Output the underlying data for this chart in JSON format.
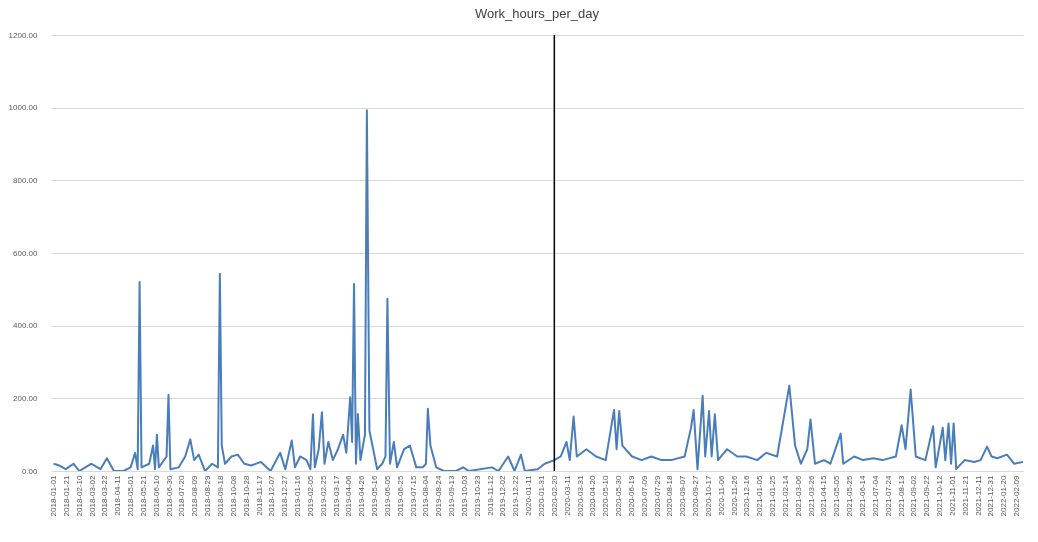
{
  "chart_data": {
    "type": "line",
    "title": "Work_hours_per_day",
    "x": [
      "2018-01-01",
      "2018-01-10",
      "2018-01-20",
      "2018-02-01",
      "2018-02-10",
      "2018-03-01",
      "2018-03-15",
      "2018-03-25",
      "2018-04-05",
      "2018-04-20",
      "2018-05-01",
      "2018-05-08",
      "2018-05-12",
      "2018-05-15",
      "2018-05-18",
      "2018-05-30",
      "2018-06-05",
      "2018-06-08",
      "2018-06-11",
      "2018-06-14",
      "2018-06-26",
      "2018-06-29",
      "2018-07-02",
      "2018-07-15",
      "2018-07-25",
      "2018-08-02",
      "2018-08-08",
      "2018-08-15",
      "2018-08-25",
      "2018-09-05",
      "2018-09-14",
      "2018-09-17",
      "2018-09-20",
      "2018-09-25",
      "2018-10-05",
      "2018-10-15",
      "2018-10-25",
      "2018-11-05",
      "2018-11-20",
      "2018-12-05",
      "2018-12-20",
      "2018-12-28",
      "2019-01-07",
      "2019-01-12",
      "2019-01-20",
      "2019-01-30",
      "2019-02-05",
      "2019-02-09",
      "2019-02-12",
      "2019-02-18",
      "2019-02-23",
      "2019-02-27",
      "2019-03-05",
      "2019-03-12",
      "2019-03-20",
      "2019-03-28",
      "2019-04-02",
      "2019-04-08",
      "2019-04-11",
      "2019-04-14",
      "2019-04-17",
      "2019-04-20",
      "2019-04-24",
      "2019-05-01",
      "2019-05-04",
      "2019-05-08",
      "2019-05-15",
      "2019-05-20",
      "2019-05-28",
      "2019-06-02",
      "2019-06-05",
      "2019-06-09",
      "2019-06-15",
      "2019-06-20",
      "2019-07-01",
      "2019-07-10",
      "2019-07-20",
      "2019-07-30",
      "2019-08-04",
      "2019-08-07",
      "2019-08-11",
      "2019-08-20",
      "2019-09-01",
      "2019-09-20",
      "2019-10-01",
      "2019-10-10",
      "2019-11-15",
      "2019-11-25",
      "2019-12-10",
      "2019-12-20",
      "2019-12-30",
      "2020-01-05",
      "2020-01-25",
      "2020-02-05",
      "2020-02-20",
      "2020-03-01",
      "2020-03-10",
      "2020-03-15",
      "2020-03-21",
      "2020-03-26",
      "2020-04-10",
      "2020-04-25",
      "2020-05-10",
      "2020-05-23",
      "2020-05-27",
      "2020-05-31",
      "2020-06-05",
      "2020-06-20",
      "2020-07-05",
      "2020-07-20",
      "2020-08-05",
      "2020-08-20",
      "2020-09-10",
      "2020-09-20",
      "2020-09-24",
      "2020-09-30",
      "2020-10-08",
      "2020-10-12",
      "2020-10-18",
      "2020-10-22",
      "2020-10-27",
      "2020-11-01",
      "2020-11-15",
      "2020-12-01",
      "2020-12-15",
      "2021-01-01",
      "2021-01-15",
      "2021-02-01",
      "2021-02-20",
      "2021-03-01",
      "2021-03-10",
      "2021-03-20",
      "2021-03-25",
      "2021-04-01",
      "2021-04-15",
      "2021-04-25",
      "2021-05-11",
      "2021-05-15",
      "2021-06-01",
      "2021-06-15",
      "2021-07-01",
      "2021-07-15",
      "2021-08-05",
      "2021-08-14",
      "2021-08-20",
      "2021-08-28",
      "2021-09-05",
      "2021-09-20",
      "2021-10-02",
      "2021-10-06",
      "2021-10-17",
      "2021-10-21",
      "2021-10-26",
      "2021-10-30",
      "2021-11-03",
      "2021-11-07",
      "2021-11-20",
      "2021-12-05",
      "2021-12-15",
      "2021-12-25",
      "2022-01-01",
      "2022-01-10",
      "2022-01-25",
      "2022-02-05",
      "2022-02-19"
    ],
    "series": [
      {
        "color": "#4a7ebb",
        "values": [
          20,
          15,
          5,
          20,
          0,
          20,
          5,
          35,
          0,
          0,
          10,
          50,
          5,
          520,
          10,
          20,
          70,
          5,
          100,
          10,
          40,
          210,
          5,
          10,
          40,
          87,
          30,
          45,
          0,
          20,
          10,
          543,
          70,
          20,
          40,
          45,
          20,
          15,
          25,
          0,
          50,
          5,
          84,
          10,
          40,
          30,
          5,
          156,
          10,
          60,
          162,
          20,
          80,
          30,
          60,
          100,
          50,
          203,
          80,
          515,
          20,
          157,
          30,
          100,
          993,
          110,
          50,
          5,
          20,
          40,
          474,
          20,
          80,
          10,
          60,
          70,
          10,
          10,
          20,
          171,
          70,
          10,
          0,
          0,
          10,
          0,
          10,
          0,
          40,
          0,
          45,
          0,
          5,
          20,
          30,
          40,
          80,
          30,
          150,
          40,
          60,
          40,
          30,
          168,
          60,
          165,
          70,
          40,
          30,
          40,
          30,
          30,
          40,
          120,
          168,
          5,
          207,
          40,
          165,
          40,
          156,
          30,
          60,
          40,
          40,
          30,
          50,
          40,
          235,
          70,
          20,
          60,
          142,
          20,
          30,
          20,
          103,
          20,
          40,
          30,
          35,
          30,
          40,
          126,
          60,
          224,
          40,
          30,
          123,
          10,
          119,
          30,
          131,
          20,
          131,
          5,
          30,
          25,
          30,
          67,
          40,
          35,
          45,
          20,
          25
        ]
      }
    ],
    "xlim": [
      "2017-12-28",
      "2022-02-19"
    ],
    "xticks": [
      "2018-01-01",
      "2018-01-21",
      "2018-02-10",
      "2018-03-02",
      "2018-03-22",
      "2018-04-11",
      "2018-05-01",
      "2018-05-21",
      "2018-06-10",
      "2018-06-30",
      "2018-07-20",
      "2018-08-09",
      "2018-08-29",
      "2018-09-18",
      "2018-10-08",
      "2018-10-28",
      "2018-11-17",
      "2018-12-07",
      "2018-12-27",
      "2019-01-16",
      "2019-02-05",
      "2019-02-25",
      "2019-03-17",
      "2019-04-06",
      "2019-04-26",
      "2019-05-16",
      "2019-06-05",
      "2019-06-25",
      "2019-07-15",
      "2019-08-04",
      "2019-08-24",
      "2019-09-13",
      "2019-10-03",
      "2019-10-23",
      "2019-11-12",
      "2019-12-02",
      "2019-12-22",
      "2020-01-11",
      "2020-01-31",
      "2020-02-20",
      "2020-03-11",
      "2020-03-31",
      "2020-04-20",
      "2020-05-10",
      "2020-05-30",
      "2020-06-19",
      "2020-07-09",
      "2020-07-29",
      "2020-08-18",
      "2020-09-07",
      "2020-09-27",
      "2020-10-17",
      "2020-11-06",
      "2020-11-26",
      "2020-12-16",
      "2021-01-05",
      "2021-01-25",
      "2021-02-14",
      "2021-03-06",
      "2021-03-26",
      "2021-04-15",
      "2021-05-05",
      "2021-05-25",
      "2021-06-14",
      "2021-07-04",
      "2021-07-24",
      "2021-08-13",
      "2021-09-02",
      "2021-09-22",
      "2021-10-12",
      "2021-11-01",
      "2021-11-21",
      "2021-12-11",
      "2021-12-31",
      "2022-01-20",
      "2022-02-09"
    ],
    "ylim": [
      0,
      1200
    ],
    "yticks": [
      {
        "value": 0,
        "label": "0.00"
      },
      {
        "value": 200,
        "label": "200.00"
      },
      {
        "value": 400,
        "label": "400.00"
      },
      {
        "value": 600,
        "label": "600.00"
      },
      {
        "value": 800,
        "label": "800.00"
      },
      {
        "value": 1000,
        "label": "1000.00"
      },
      {
        "value": 1200,
        "label": "1200.00"
      }
    ],
    "grid": "y",
    "ref_lines": [
      {
        "axis": "x",
        "value": "2020-02-20",
        "color": "#000000"
      }
    ]
  }
}
